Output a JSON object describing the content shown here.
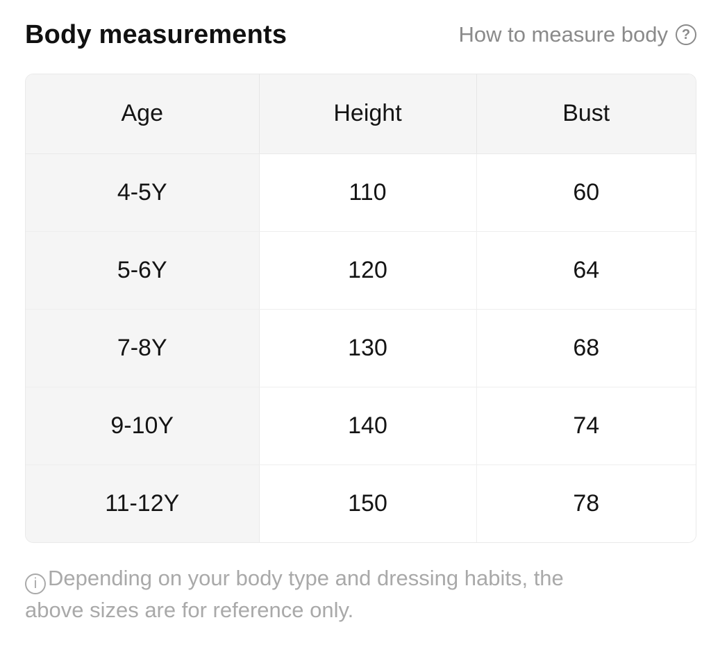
{
  "header": {
    "title": "Body measurements",
    "help_label": "How to measure body",
    "help_icon_glyph": "?"
  },
  "table": {
    "columns": [
      "Age",
      "Height",
      "Bust"
    ],
    "rows": [
      {
        "age": "4-5Y",
        "height": "110",
        "bust": "60"
      },
      {
        "age": "5-6Y",
        "height": "120",
        "bust": "64"
      },
      {
        "age": "7-8Y",
        "height": "130",
        "bust": "68"
      },
      {
        "age": "9-10Y",
        "height": "140",
        "bust": "74"
      },
      {
        "age": "11-12Y",
        "height": "150",
        "bust": "78"
      }
    ]
  },
  "footnote": {
    "icon_glyph": "i",
    "lines": [
      "Depending on your body type and dressing habits, the",
      "above sizes are for reference only."
    ]
  },
  "colors": {
    "table_header_bg": "#f5f5f5",
    "table_border": "#e9e9e9",
    "link_text": "#8a8a8a",
    "footnote_text": "#a9a9a9",
    "primary_text": "#141414"
  }
}
